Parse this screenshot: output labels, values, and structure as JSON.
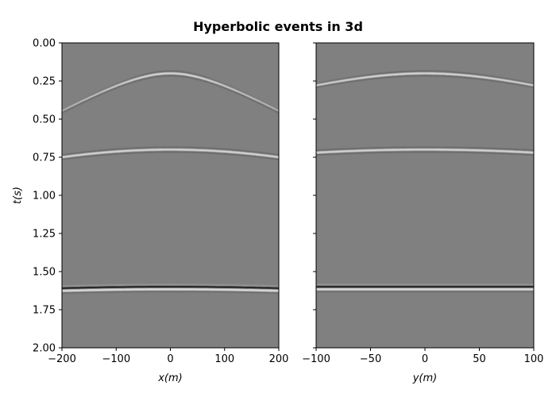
{
  "chart_data": {
    "type": "heatmap",
    "title": "Hyperbolic events in 3d",
    "colormap": "gray",
    "background_color": "#808080",
    "grid": false,
    "panels": [
      {
        "name": "left",
        "xlabel": "x(m)",
        "ylabel": "t(s)",
        "xlim": [
          -200,
          200
        ],
        "ylim": [
          2.0,
          0.0
        ],
        "xticks": [
          -200,
          -100,
          0,
          100,
          200
        ],
        "xtick_labels": [
          "−200",
          "−100",
          "0",
          "100",
          "200"
        ],
        "yticks": [
          0.0,
          0.25,
          0.5,
          0.75,
          1.0,
          1.25,
          1.5,
          1.75,
          2.0
        ],
        "ytick_labels": [
          "0.00",
          "0.25",
          "0.50",
          "0.75",
          "1.00",
          "1.25",
          "1.50",
          "1.75",
          "2.00"
        ],
        "events": [
          {
            "t0": 0.2,
            "t_at_edge": 0.45,
            "polarity": "white"
          },
          {
            "t0": 0.7,
            "t_at_edge": 0.75,
            "polarity": "white"
          },
          {
            "t0": 1.6,
            "t_at_edge": 1.61,
            "polarity": "black"
          }
        ]
      },
      {
        "name": "right",
        "xlabel": "y(m)",
        "ylabel": "",
        "xlim": [
          -100,
          100
        ],
        "ylim": [
          2.0,
          0.0
        ],
        "xticks": [
          -100,
          -50,
          0,
          50,
          100
        ],
        "xtick_labels": [
          "−100",
          "−50",
          "0",
          "50",
          "100"
        ],
        "yticks": [
          0.0,
          0.25,
          0.5,
          0.75,
          1.0,
          1.25,
          1.5,
          1.75,
          2.0
        ],
        "ytick_labels": [],
        "events": [
          {
            "t0": 0.2,
            "t_at_edge": 0.28,
            "polarity": "white"
          },
          {
            "t0": 0.7,
            "t_at_edge": 0.72,
            "polarity": "white"
          },
          {
            "t0": 1.6,
            "t_at_edge": 1.6,
            "polarity": "black"
          }
        ]
      }
    ]
  }
}
